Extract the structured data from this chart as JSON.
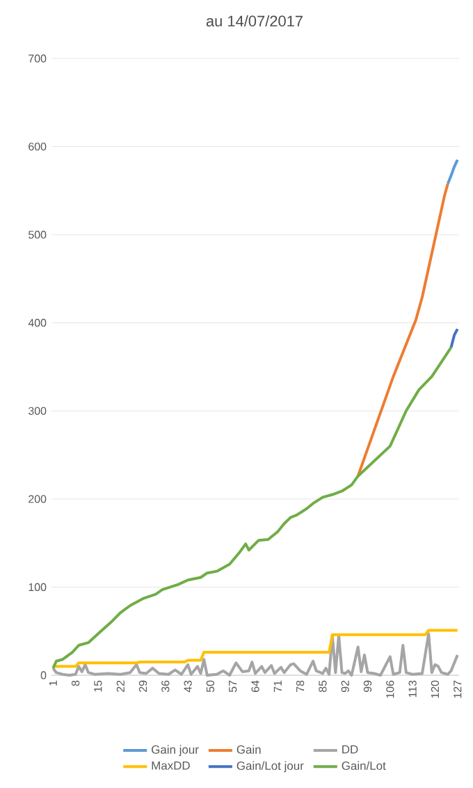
{
  "chart_data": {
    "type": "line",
    "title": "au 14/07/2017",
    "xlim": [
      0.5,
      127.5
    ],
    "xticks": [
      1,
      8,
      15,
      22,
      29,
      36,
      43,
      50,
      57,
      64,
      71,
      78,
      85,
      92,
      99,
      106,
      113,
      120,
      127
    ],
    "ylim": [
      0,
      700
    ],
    "yticks": [
      0,
      100,
      200,
      300,
      400,
      500,
      600,
      700
    ],
    "grid": "y",
    "legend": "bottom",
    "marker": "none",
    "line_style": "solid",
    "series": [
      {
        "name": "Gain jour",
        "color": "#5b9bd5",
        "x": [
          124,
          125,
          126,
          127
        ],
        "values": [
          558,
          567,
          577,
          585
        ]
      },
      {
        "name": "Gain",
        "color": "#ed7d31",
        "x": [
          96,
          107,
          114,
          116,
          123,
          124
        ],
        "values": [
          226,
          339,
          403,
          429,
          545,
          558
        ]
      },
      {
        "name": "DD",
        "color": "#a5a5a5",
        "x": [
          1,
          2,
          4,
          6,
          8,
          9,
          10,
          11,
          12,
          14,
          18,
          22,
          25,
          27,
          28,
          30,
          32,
          34,
          37,
          39,
          41,
          43,
          44,
          46,
          47,
          48,
          49,
          52,
          54,
          56,
          58,
          60,
          62,
          63,
          64,
          66,
          67,
          69,
          70,
          72,
          73,
          75,
          76,
          78,
          80,
          82,
          83,
          85,
          86,
          87,
          88,
          89,
          90,
          91,
          92,
          93,
          94,
          96,
          97,
          98,
          99,
          101,
          103,
          106,
          107,
          109,
          110,
          111,
          113,
          116,
          118,
          119,
          120,
          121,
          122,
          124,
          125,
          127
        ],
        "values": [
          8,
          3,
          1,
          0,
          1,
          10,
          4,
          12,
          3,
          1,
          2,
          1,
          3,
          12,
          3,
          2,
          8,
          2,
          1,
          6,
          1,
          12,
          1,
          10,
          2,
          18,
          0,
          1,
          5,
          0,
          14,
          4,
          5,
          15,
          2,
          10,
          3,
          11,
          2,
          9,
          3,
          12,
          13,
          5,
          1,
          16,
          5,
          2,
          8,
          1,
          45,
          3,
          45,
          3,
          2,
          5,
          0,
          32,
          4,
          23,
          3,
          2,
          0,
          21,
          1,
          3,
          34,
          3,
          1,
          2,
          47,
          3,
          12,
          10,
          3,
          1,
          5,
          23
        ]
      },
      {
        "name": "MaxDD",
        "color": "#ffc000",
        "x": [
          1,
          8,
          9,
          27,
          28,
          42,
          43,
          47,
          48,
          87,
          88,
          117,
          118,
          127
        ],
        "values": [
          10,
          10,
          14,
          14,
          15,
          15,
          17,
          17,
          26,
          26,
          46,
          46,
          51,
          51
        ]
      },
      {
        "name": "Gain/Lot jour",
        "color": "#4472c4",
        "x": [
          125,
          126,
          127
        ],
        "values": [
          372,
          386,
          393
        ]
      },
      {
        "name": "Gain/Lot",
        "color": "#70ad47",
        "x": [
          1,
          2,
          4,
          7,
          9,
          12,
          15,
          19,
          22,
          25,
          29,
          33,
          35,
          40,
          43,
          47,
          49,
          52,
          56,
          59,
          61,
          62,
          65,
          68,
          71,
          73,
          75,
          77,
          80,
          82,
          85,
          88,
          91,
          94,
          96,
          106,
          111,
          115,
          119,
          125
        ],
        "values": [
          8,
          16,
          18,
          26,
          34,
          37,
          47,
          60,
          71,
          79,
          87,
          92,
          97,
          103,
          108,
          111,
          116,
          118,
          126,
          139,
          149,
          142,
          153,
          154,
          163,
          172,
          179,
          182,
          189,
          195,
          202,
          205,
          209,
          216,
          226,
          260,
          300,
          324,
          339,
          372
        ]
      }
    ]
  }
}
